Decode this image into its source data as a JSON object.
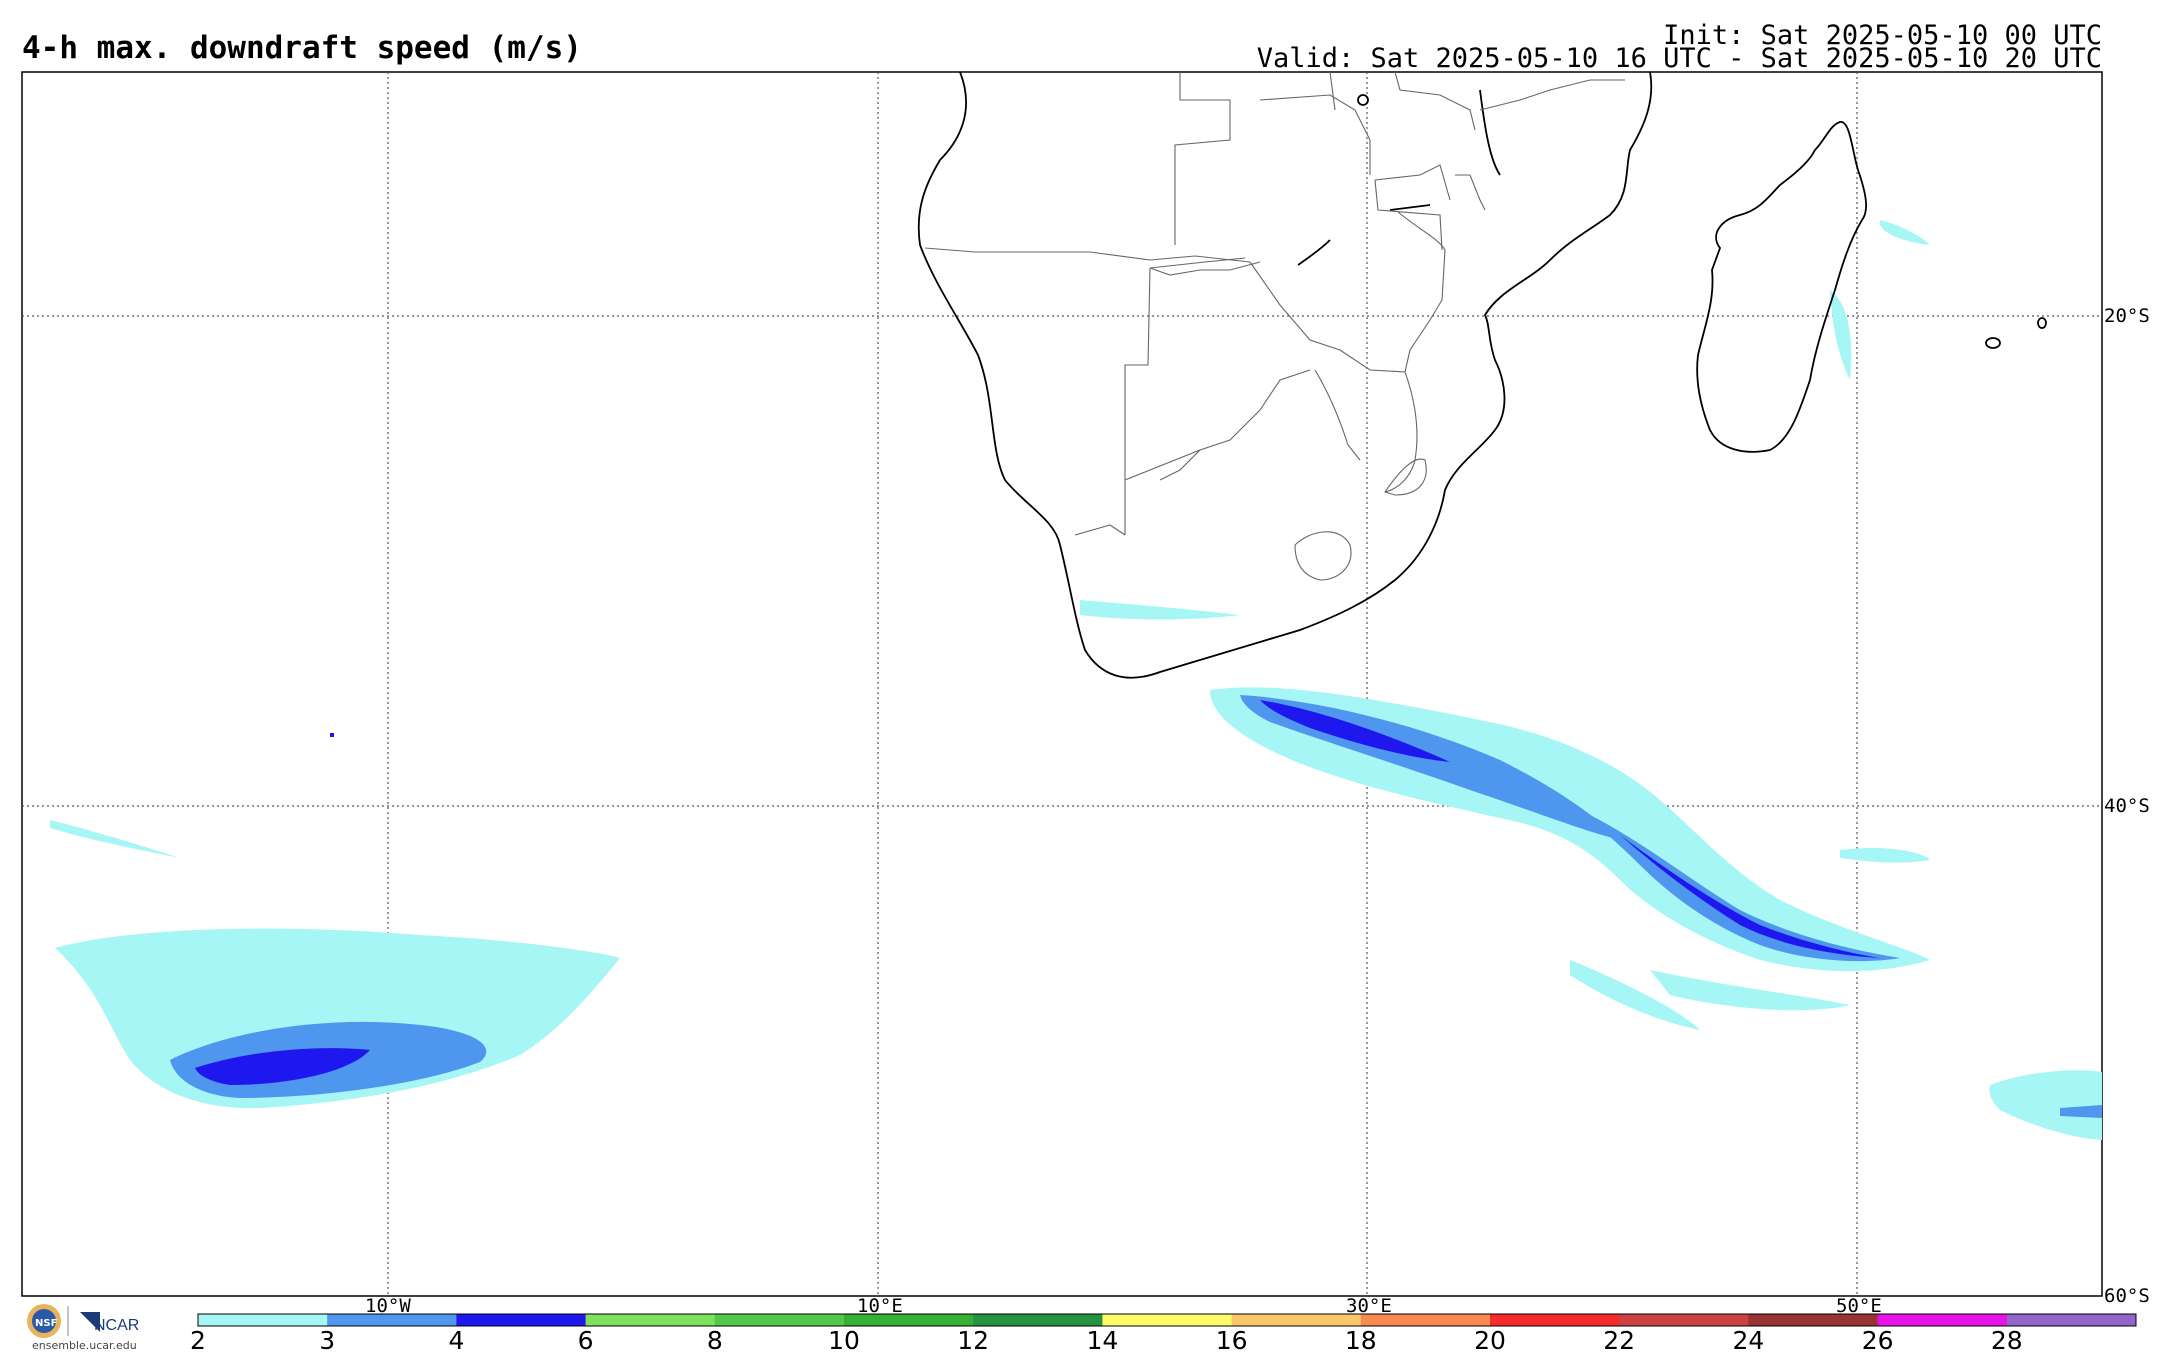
{
  "title": "4-h max. downdraft speed (m/s)",
  "init": "Init: Sat 2025-05-10 00 UTC",
  "valid": "Valid: Sat 2025-05-10 16 UTC - Sat 2025-05-10 20 UTC",
  "grid": {
    "lon_labels": [
      "10°W",
      "10°E",
      "30°E",
      "50°E"
    ],
    "lat_labels": [
      "20°S",
      "40°S",
      "60°S"
    ]
  },
  "colorbar": {
    "labels": [
      "2",
      "3",
      "4",
      "6",
      "8",
      "10",
      "12",
      "14",
      "16",
      "18",
      "20",
      "22",
      "24",
      "26",
      "28"
    ],
    "colors": [
      "#a6f6f6",
      "#4f96ee",
      "#1f18ee",
      "#7ee25e",
      "#54c84a",
      "#34b134",
      "#249442",
      "#fbfb6a",
      "#fcc769",
      "#f98a52",
      "#f52a2a",
      "#cc4141",
      "#9a3333",
      "#e612e6",
      "#9365cb"
    ]
  },
  "logos": {
    "nsf": "NSF",
    "ncar": "NCAR",
    "site": "ensemble.ucar.edu"
  }
}
